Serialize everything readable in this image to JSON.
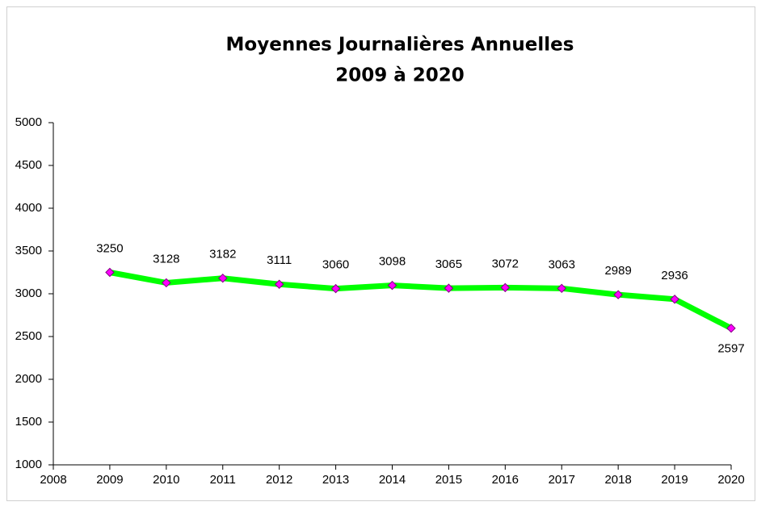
{
  "chart_data": {
    "type": "line",
    "title": "Moyennes Journalières Annuelles",
    "subtitle": "2009 à 2020",
    "x": [
      2009,
      2010,
      2011,
      2012,
      2013,
      2014,
      2015,
      2016,
      2017,
      2018,
      2019,
      2020
    ],
    "series": [
      {
        "name": "Moyennes Journalières",
        "color": "#00ff00",
        "marker_color": "#ff00ff",
        "values": [
          3250,
          3128,
          3182,
          3111,
          3060,
          3098,
          3065,
          3072,
          3063,
          2989,
          2936,
          2597
        ]
      }
    ],
    "xlim": [
      2008,
      2020
    ],
    "xticks": [
      2008,
      2009,
      2010,
      2011,
      2012,
      2013,
      2014,
      2015,
      2016,
      2017,
      2018,
      2019,
      2020
    ],
    "ylim": [
      1000,
      5000
    ],
    "yticks": [
      1000,
      1500,
      2000,
      2500,
      3000,
      3500,
      4000,
      4500,
      5000
    ],
    "grid": false,
    "data_labels": true
  }
}
